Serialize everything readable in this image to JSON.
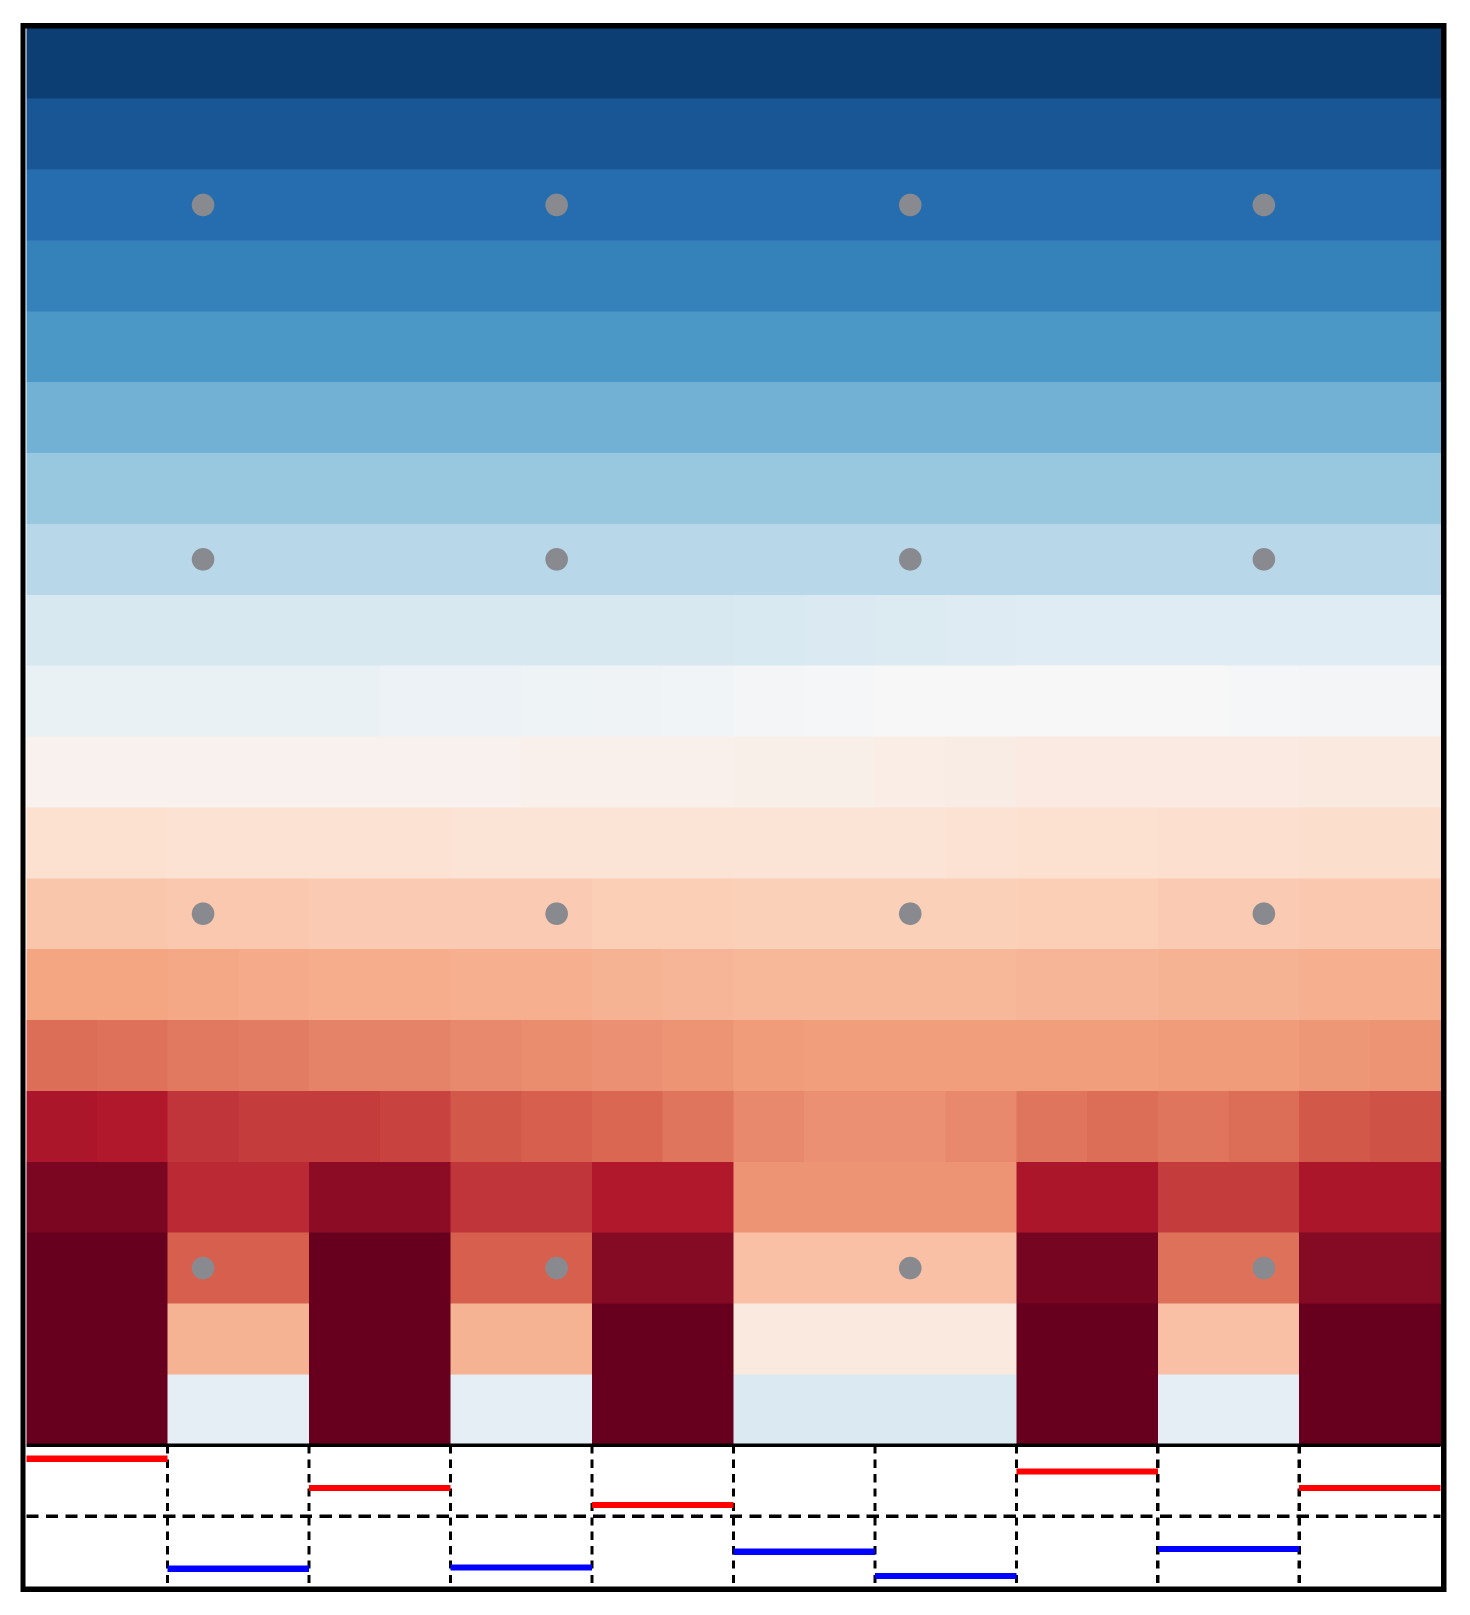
{
  "chart_data": [
    {
      "type": "heatmap",
      "colormap": "RdBu_r",
      "clim": [
        -1,
        1
      ],
      "xlim": [
        0,
        10
      ],
      "ylim": [
        0,
        10
      ],
      "values": [
        [
          -0.95,
          -0.95,
          -0.95,
          -0.95,
          -0.95,
          -0.95,
          -0.95,
          -0.95,
          -0.95,
          -0.95,
          -0.95,
          -0.95,
          -0.95,
          -0.95,
          -0.95,
          -0.95,
          -0.95,
          -0.95,
          -0.95,
          -0.95
        ],
        [
          -0.86,
          -0.86,
          -0.86,
          -0.86,
          -0.86,
          -0.86,
          -0.86,
          -0.86,
          -0.86,
          -0.86,
          -0.86,
          -0.86,
          -0.86,
          -0.86,
          -0.86,
          -0.86,
          -0.86,
          -0.86,
          -0.86,
          -0.86
        ],
        [
          -0.77,
          -0.77,
          -0.77,
          -0.77,
          -0.77,
          -0.77,
          -0.77,
          -0.77,
          -0.77,
          -0.77,
          -0.77,
          -0.77,
          -0.77,
          -0.77,
          -0.77,
          -0.77,
          -0.77,
          -0.77,
          -0.77,
          -0.77
        ],
        [
          -0.68,
          -0.68,
          -0.68,
          -0.68,
          -0.68,
          -0.68,
          -0.68,
          -0.68,
          -0.68,
          -0.68,
          -0.68,
          -0.68,
          -0.68,
          -0.68,
          -0.68,
          -0.68,
          -0.68,
          -0.68,
          -0.68,
          -0.68
        ],
        [
          -0.58,
          -0.58,
          -0.58,
          -0.58,
          -0.58,
          -0.58,
          -0.58,
          -0.58,
          -0.58,
          -0.58,
          -0.58,
          -0.58,
          -0.58,
          -0.58,
          -0.58,
          -0.58,
          -0.58,
          -0.58,
          -0.58,
          -0.58
        ],
        [
          -0.48,
          -0.48,
          -0.48,
          -0.48,
          -0.48,
          -0.48,
          -0.48,
          -0.48,
          -0.48,
          -0.48,
          -0.48,
          -0.48,
          -0.48,
          -0.48,
          -0.48,
          -0.48,
          -0.48,
          -0.48,
          -0.48,
          -0.48
        ],
        [
          -0.38,
          -0.38,
          -0.38,
          -0.38,
          -0.38,
          -0.38,
          -0.38,
          -0.38,
          -0.38,
          -0.38,
          -0.38,
          -0.38,
          -0.38,
          -0.38,
          -0.38,
          -0.38,
          -0.38,
          -0.38,
          -0.38,
          -0.38
        ],
        [
          -0.28,
          -0.28,
          -0.28,
          -0.28,
          -0.28,
          -0.28,
          -0.28,
          -0.28,
          -0.28,
          -0.28,
          -0.28,
          -0.28,
          -0.28,
          -0.28,
          -0.28,
          -0.28,
          -0.28,
          -0.28,
          -0.28,
          -0.28
        ],
        [
          -0.17,
          -0.17,
          -0.17,
          -0.17,
          -0.17,
          -0.17,
          -0.17,
          -0.17,
          -0.17,
          -0.17,
          -0.16,
          -0.15,
          -0.14,
          -0.13,
          -0.12,
          -0.12,
          -0.12,
          -0.12,
          -0.12,
          -0.12
        ],
        [
          -0.07,
          -0.07,
          -0.07,
          -0.07,
          -0.07,
          -0.06,
          -0.06,
          -0.05,
          -0.04,
          -0.03,
          -0.02,
          -0.01,
          0,
          0,
          0,
          0,
          0,
          -0.01,
          -0.02,
          -0.02
        ],
        [
          0.04,
          0.04,
          0.04,
          0.04,
          0.04,
          0.04,
          0.04,
          0.05,
          0.05,
          0.05,
          0.06,
          0.06,
          0.07,
          0.08,
          0.09,
          0.09,
          0.09,
          0.09,
          0.1,
          0.1
        ],
        [
          0.16,
          0.16,
          0.15,
          0.15,
          0.15,
          0.15,
          0.14,
          0.14,
          0.14,
          0.14,
          0.14,
          0.14,
          0.14,
          0.15,
          0.16,
          0.16,
          0.17,
          0.17,
          0.18,
          0.18
        ],
        [
          0.28,
          0.28,
          0.27,
          0.27,
          0.26,
          0.26,
          0.26,
          0.26,
          0.25,
          0.25,
          0.24,
          0.24,
          0.24,
          0.24,
          0.25,
          0.25,
          0.26,
          0.26,
          0.27,
          0.27
        ],
        [
          0.4,
          0.4,
          0.39,
          0.38,
          0.37,
          0.37,
          0.36,
          0.36,
          0.35,
          0.34,
          0.33,
          0.33,
          0.33,
          0.33,
          0.34,
          0.34,
          0.35,
          0.35,
          0.36,
          0.36
        ],
        [
          0.56,
          0.55,
          0.53,
          0.52,
          0.5,
          0.5,
          0.48,
          0.47,
          0.46,
          0.45,
          0.43,
          0.42,
          0.42,
          0.42,
          0.42,
          0.42,
          0.43,
          0.43,
          0.44,
          0.45
        ],
        [
          0.82,
          0.8,
          0.72,
          0.7,
          0.7,
          0.68,
          0.62,
          0.6,
          0.58,
          0.54,
          0.48,
          0.46,
          0.46,
          0.48,
          0.54,
          0.56,
          0.54,
          0.56,
          0.62,
          0.64
        ],
        [
          0.95,
          0.95,
          0.75,
          0.75,
          0.9,
          0.9,
          0.72,
          0.72,
          0.8,
          0.8,
          0.45,
          0.45,
          0.45,
          0.45,
          0.82,
          0.82,
          0.7,
          0.7,
          0.82,
          0.82
        ],
        [
          1,
          1,
          0.6,
          0.6,
          1,
          1,
          0.6,
          0.6,
          0.92,
          0.92,
          0.3,
          0.3,
          0.3,
          0.3,
          0.96,
          0.96,
          0.55,
          0.55,
          0.92,
          0.92
        ],
        [
          1,
          1,
          0.35,
          0.35,
          1,
          1,
          0.35,
          0.35,
          1,
          1,
          0.1,
          0.1,
          0.1,
          0.1,
          1,
          1,
          0.3,
          0.3,
          1,
          1
        ],
        [
          1,
          1,
          -0.1,
          -0.1,
          1,
          1,
          -0.1,
          -0.1,
          1,
          1,
          -0.15,
          -0.15,
          -0.15,
          -0.15,
          1,
          1,
          -0.1,
          -0.1,
          1,
          1
        ]
      ]
    },
    {
      "type": "scatter",
      "color": "#888a8f",
      "xlim": [
        0,
        10
      ],
      "ylim": [
        0,
        10
      ],
      "x": [
        1.25,
        3.75,
        6.25,
        8.75,
        1.25,
        3.75,
        6.25,
        8.75,
        1.25,
        3.75,
        6.25,
        8.75,
        1.25,
        3.75,
        6.25,
        8.75
      ],
      "y": [
        8.75,
        8.75,
        8.75,
        8.75,
        6.25,
        6.25,
        6.25,
        6.25,
        3.75,
        3.75,
        3.75,
        3.75,
        1.25,
        1.25,
        1.25,
        1.25
      ]
    },
    {
      "type": "segments",
      "xlim": [
        0,
        10
      ],
      "ylim": [
        -1,
        1
      ],
      "positive_color": "#ff0000",
      "negative_color": "#0000ff",
      "values": [
        0.81,
        -0.74,
        0.4,
        -0.72,
        0.16,
        -0.5,
        -0.84,
        0.63,
        -0.46,
        0.4
      ]
    }
  ]
}
